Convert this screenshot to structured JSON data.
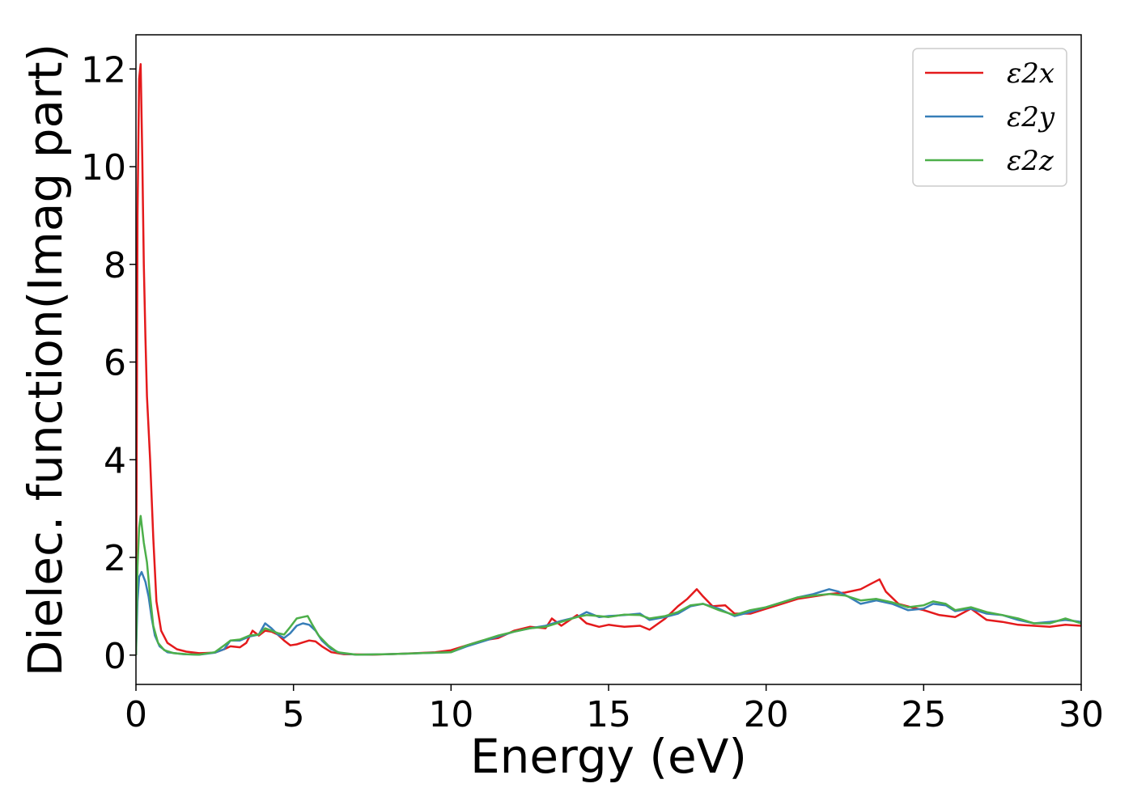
{
  "chart_data": {
    "type": "line",
    "xlabel": "Energy (eV)",
    "ylabel": "Dielec. function(Imag part)",
    "xlim": [
      0,
      30
    ],
    "ylim": [
      -0.6,
      12.7
    ],
    "xticks": [
      "0",
      "5",
      "10",
      "15",
      "20",
      "25",
      "30"
    ],
    "yticks": [
      "0",
      "2",
      "4",
      "6",
      "8",
      "10",
      "12"
    ],
    "grid": false,
    "legend_position": "top-right",
    "series": [
      {
        "name": "ε2x",
        "color": "#e41a1c",
        "points": [
          [
            0,
            0
          ],
          [
            0.05,
            9.0
          ],
          [
            0.1,
            11.8
          ],
          [
            0.15,
            12.1
          ],
          [
            0.2,
            10.2
          ],
          [
            0.25,
            8.0
          ],
          [
            0.3,
            6.5
          ],
          [
            0.35,
            5.3
          ],
          [
            0.45,
            4.0
          ],
          [
            0.55,
            2.4
          ],
          [
            0.65,
            1.1
          ],
          [
            0.8,
            0.5
          ],
          [
            1.0,
            0.25
          ],
          [
            1.3,
            0.12
          ],
          [
            1.6,
            0.07
          ],
          [
            2.0,
            0.04
          ],
          [
            2.5,
            0.05
          ],
          [
            2.8,
            0.12
          ],
          [
            3.0,
            0.18
          ],
          [
            3.3,
            0.16
          ],
          [
            3.5,
            0.25
          ],
          [
            3.7,
            0.5
          ],
          [
            3.9,
            0.4
          ],
          [
            4.1,
            0.5
          ],
          [
            4.3,
            0.48
          ],
          [
            4.5,
            0.42
          ],
          [
            4.7,
            0.3
          ],
          [
            4.9,
            0.2
          ],
          [
            5.1,
            0.22
          ],
          [
            5.3,
            0.26
          ],
          [
            5.5,
            0.3
          ],
          [
            5.7,
            0.28
          ],
          [
            5.9,
            0.18
          ],
          [
            6.2,
            0.06
          ],
          [
            6.6,
            0.02
          ],
          [
            7.5,
            0.01
          ],
          [
            8.5,
            0.03
          ],
          [
            9.5,
            0.06
          ],
          [
            10.0,
            0.1
          ],
          [
            10.5,
            0.2
          ],
          [
            11.0,
            0.3
          ],
          [
            11.5,
            0.35
          ],
          [
            12.0,
            0.5
          ],
          [
            12.5,
            0.58
          ],
          [
            13.0,
            0.55
          ],
          [
            13.2,
            0.75
          ],
          [
            13.5,
            0.6
          ],
          [
            14.0,
            0.82
          ],
          [
            14.3,
            0.65
          ],
          [
            14.7,
            0.58
          ],
          [
            15.0,
            0.62
          ],
          [
            15.5,
            0.58
          ],
          [
            16.0,
            0.6
          ],
          [
            16.3,
            0.52
          ],
          [
            16.8,
            0.75
          ],
          [
            17.2,
            1.0
          ],
          [
            17.5,
            1.15
          ],
          [
            17.8,
            1.35
          ],
          [
            18.0,
            1.2
          ],
          [
            18.3,
            1.0
          ],
          [
            18.7,
            1.02
          ],
          [
            19.0,
            0.85
          ],
          [
            19.5,
            0.85
          ],
          [
            20.0,
            0.95
          ],
          [
            20.5,
            1.05
          ],
          [
            21.0,
            1.15
          ],
          [
            21.5,
            1.2
          ],
          [
            22.0,
            1.25
          ],
          [
            22.5,
            1.28
          ],
          [
            23.0,
            1.35
          ],
          [
            23.3,
            1.45
          ],
          [
            23.6,
            1.55
          ],
          [
            23.8,
            1.3
          ],
          [
            24.2,
            1.05
          ],
          [
            24.6,
            0.98
          ],
          [
            25.0,
            0.92
          ],
          [
            25.5,
            0.82
          ],
          [
            26.0,
            0.78
          ],
          [
            26.5,
            0.95
          ],
          [
            27.0,
            0.72
          ],
          [
            27.5,
            0.68
          ],
          [
            28.0,
            0.62
          ],
          [
            28.5,
            0.6
          ],
          [
            29.0,
            0.58
          ],
          [
            29.5,
            0.62
          ],
          [
            30.0,
            0.6
          ]
        ]
      },
      {
        "name": "ε2y",
        "color": "#377eb8",
        "points": [
          [
            0,
            0
          ],
          [
            0.05,
            1.1
          ],
          [
            0.1,
            1.6
          ],
          [
            0.18,
            1.7
          ],
          [
            0.3,
            1.5
          ],
          [
            0.4,
            1.2
          ],
          [
            0.5,
            0.75
          ],
          [
            0.6,
            0.4
          ],
          [
            0.75,
            0.18
          ],
          [
            1.0,
            0.06
          ],
          [
            1.5,
            0.02
          ],
          [
            2.0,
            0.01
          ],
          [
            2.5,
            0.05
          ],
          [
            2.8,
            0.12
          ],
          [
            3.0,
            0.3
          ],
          [
            3.3,
            0.3
          ],
          [
            3.6,
            0.38
          ],
          [
            3.9,
            0.42
          ],
          [
            4.1,
            0.65
          ],
          [
            4.3,
            0.55
          ],
          [
            4.5,
            0.42
          ],
          [
            4.7,
            0.35
          ],
          [
            4.9,
            0.45
          ],
          [
            5.1,
            0.6
          ],
          [
            5.3,
            0.65
          ],
          [
            5.5,
            0.62
          ],
          [
            5.7,
            0.5
          ],
          [
            5.9,
            0.3
          ],
          [
            6.2,
            0.12
          ],
          [
            6.5,
            0.04
          ],
          [
            7.0,
            0.01
          ],
          [
            8.0,
            0.02
          ],
          [
            9.0,
            0.04
          ],
          [
            10.0,
            0.06
          ],
          [
            10.5,
            0.18
          ],
          [
            11.0,
            0.28
          ],
          [
            11.5,
            0.38
          ],
          [
            12.0,
            0.48
          ],
          [
            12.5,
            0.55
          ],
          [
            13.0,
            0.6
          ],
          [
            13.5,
            0.7
          ],
          [
            14.0,
            0.78
          ],
          [
            14.3,
            0.88
          ],
          [
            14.7,
            0.78
          ],
          [
            15.0,
            0.8
          ],
          [
            15.5,
            0.82
          ],
          [
            16.0,
            0.85
          ],
          [
            16.3,
            0.72
          ],
          [
            16.8,
            0.78
          ],
          [
            17.2,
            0.85
          ],
          [
            17.6,
            1.0
          ],
          [
            18.0,
            1.05
          ],
          [
            18.5,
            0.95
          ],
          [
            19.0,
            0.8
          ],
          [
            19.5,
            0.88
          ],
          [
            20.0,
            0.98
          ],
          [
            20.5,
            1.08
          ],
          [
            21.0,
            1.18
          ],
          [
            21.5,
            1.25
          ],
          [
            22.0,
            1.35
          ],
          [
            22.3,
            1.3
          ],
          [
            22.6,
            1.2
          ],
          [
            23.0,
            1.05
          ],
          [
            23.5,
            1.12
          ],
          [
            24.0,
            1.05
          ],
          [
            24.5,
            0.92
          ],
          [
            25.0,
            0.95
          ],
          [
            25.3,
            1.05
          ],
          [
            25.7,
            1.02
          ],
          [
            26.0,
            0.9
          ],
          [
            26.5,
            0.95
          ],
          [
            27.0,
            0.85
          ],
          [
            27.5,
            0.82
          ],
          [
            28.0,
            0.72
          ],
          [
            28.5,
            0.65
          ],
          [
            29.0,
            0.68
          ],
          [
            29.5,
            0.72
          ],
          [
            30.0,
            0.68
          ]
        ]
      },
      {
        "name": "ε2z",
        "color": "#4daf4a",
        "points": [
          [
            0,
            0
          ],
          [
            0.05,
            1.8
          ],
          [
            0.1,
            2.6
          ],
          [
            0.15,
            2.85
          ],
          [
            0.25,
            2.3
          ],
          [
            0.35,
            1.9
          ],
          [
            0.45,
            1.2
          ],
          [
            0.55,
            0.6
          ],
          [
            0.7,
            0.25
          ],
          [
            0.9,
            0.1
          ],
          [
            1.2,
            0.04
          ],
          [
            1.6,
            0.02
          ],
          [
            2.0,
            0.01
          ],
          [
            2.5,
            0.06
          ],
          [
            2.8,
            0.2
          ],
          [
            3.0,
            0.3
          ],
          [
            3.3,
            0.32
          ],
          [
            3.6,
            0.4
          ],
          [
            3.9,
            0.42
          ],
          [
            4.1,
            0.55
          ],
          [
            4.3,
            0.5
          ],
          [
            4.5,
            0.45
          ],
          [
            4.7,
            0.42
          ],
          [
            4.9,
            0.58
          ],
          [
            5.1,
            0.75
          ],
          [
            5.3,
            0.78
          ],
          [
            5.45,
            0.8
          ],
          [
            5.6,
            0.62
          ],
          [
            5.8,
            0.4
          ],
          [
            6.1,
            0.2
          ],
          [
            6.4,
            0.06
          ],
          [
            7.0,
            0.01
          ],
          [
            8.0,
            0.02
          ],
          [
            9.0,
            0.04
          ],
          [
            10.0,
            0.06
          ],
          [
            10.5,
            0.2
          ],
          [
            11.0,
            0.3
          ],
          [
            11.5,
            0.4
          ],
          [
            12.0,
            0.48
          ],
          [
            12.5,
            0.55
          ],
          [
            13.0,
            0.58
          ],
          [
            13.5,
            0.68
          ],
          [
            14.0,
            0.78
          ],
          [
            14.3,
            0.82
          ],
          [
            14.7,
            0.8
          ],
          [
            15.0,
            0.78
          ],
          [
            15.5,
            0.83
          ],
          [
            16.0,
            0.82
          ],
          [
            16.3,
            0.75
          ],
          [
            16.8,
            0.8
          ],
          [
            17.2,
            0.88
          ],
          [
            17.6,
            1.02
          ],
          [
            18.0,
            1.05
          ],
          [
            18.5,
            0.92
          ],
          [
            19.0,
            0.82
          ],
          [
            19.5,
            0.92
          ],
          [
            20.0,
            0.98
          ],
          [
            20.5,
            1.08
          ],
          [
            21.0,
            1.18
          ],
          [
            21.5,
            1.22
          ],
          [
            22.0,
            1.25
          ],
          [
            22.5,
            1.22
          ],
          [
            23.0,
            1.12
          ],
          [
            23.5,
            1.15
          ],
          [
            24.0,
            1.08
          ],
          [
            24.5,
            0.98
          ],
          [
            25.0,
            1.02
          ],
          [
            25.3,
            1.1
          ],
          [
            25.7,
            1.05
          ],
          [
            26.0,
            0.92
          ],
          [
            26.5,
            0.98
          ],
          [
            27.0,
            0.88
          ],
          [
            27.5,
            0.82
          ],
          [
            28.0,
            0.75
          ],
          [
            28.5,
            0.65
          ],
          [
            29.0,
            0.65
          ],
          [
            29.5,
            0.75
          ],
          [
            30.0,
            0.65
          ]
        ]
      }
    ]
  }
}
